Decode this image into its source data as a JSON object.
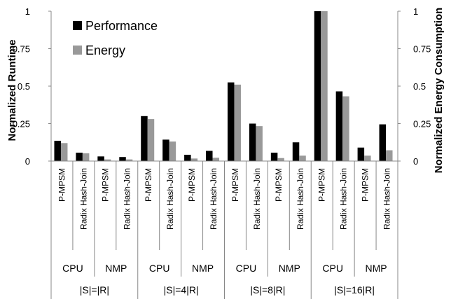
{
  "chart_data": {
    "type": "bar",
    "title": "",
    "ylabel": "Normalized Runtime",
    "y2label": "Normalized Energy Consumption",
    "ylim": [
      0,
      1
    ],
    "y2lim": [
      0,
      1
    ],
    "yticks": [
      "0",
      "0.25",
      "0.5",
      "0.75",
      "1"
    ],
    "y2ticks": [
      "0",
      "0.25",
      "0.5",
      "0.75",
      "1"
    ],
    "legend_position": "top-left",
    "grid": false,
    "categories": [
      "P-MPSM",
      "Radix Hash-Join",
      "P-MPSM",
      "Radix Hash-Join",
      "P-MPSM",
      "Radix Hash-Join",
      "P-MPSM",
      "Radix Hash-Join",
      "P-MPSM",
      "Radix Hash-Join",
      "P-MPSM",
      "Radix Hash-Join",
      "P-MPSM",
      "Radix Hash-Join",
      "P-MPSM",
      "Radix Hash-Join"
    ],
    "platforms": [
      "CPU",
      "NMP",
      "CPU",
      "NMP",
      "CPU",
      "NMP",
      "CPU",
      "NMP"
    ],
    "size_groups": [
      "|S|=|R|",
      "|S|=4|R|",
      "|S|=8|R|",
      "|S|=16|R|"
    ],
    "series": [
      {
        "name": "Performance",
        "color": "#000000",
        "values": [
          0.135,
          0.056,
          0.031,
          0.027,
          0.3,
          0.143,
          0.042,
          0.068,
          0.525,
          0.25,
          0.056,
          0.125,
          1.0,
          0.465,
          0.09,
          0.245
        ]
      },
      {
        "name": "Energy",
        "color": "#999999",
        "values": [
          0.12,
          0.052,
          0.011,
          0.011,
          0.28,
          0.13,
          0.017,
          0.022,
          0.51,
          0.233,
          0.02,
          0.036,
          1.0,
          0.432,
          0.036,
          0.072
        ]
      }
    ]
  }
}
